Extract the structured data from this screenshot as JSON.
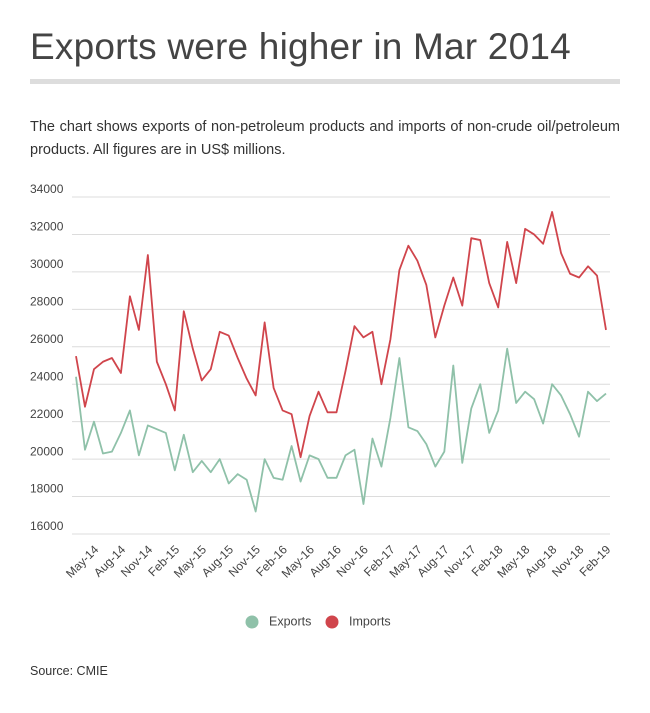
{
  "chart_data": {
    "type": "line",
    "title": "Exports were higher in Mar 2014",
    "subtitle": "The chart shows exports of non-petroleum products and imports of non-crude oil/petroleum products. All figures are in US$ millions.",
    "source": "Source: CMIE",
    "categories": [
      null,
      null,
      "May-14",
      null,
      null,
      "Aug-14",
      null,
      null,
      "Nov-14",
      null,
      null,
      "Feb-15",
      null,
      null,
      "May-15",
      null,
      null,
      "Aug-15",
      null,
      null,
      "Nov-15",
      null,
      null,
      "Feb-16",
      null,
      null,
      "May-16",
      null,
      null,
      "Aug-16",
      null,
      null,
      "Nov-16",
      null,
      null,
      "Feb-17",
      null,
      null,
      "May-17",
      null,
      null,
      "Aug-17",
      null,
      null,
      "Nov-17",
      null,
      null,
      "Feb-18",
      null,
      null,
      "May-18",
      null,
      null,
      "Aug-18",
      null,
      null,
      "Nov-18",
      null,
      null,
      "Feb-19"
    ],
    "series": [
      {
        "name": "Exports",
        "color": "#8fc1a9",
        "values": [
          24400,
          20500,
          22000,
          20300,
          20400,
          21400,
          22600,
          20200,
          21800,
          21600,
          21400,
          19400,
          21300,
          19300,
          19900,
          19300,
          20000,
          18700,
          19200,
          18900,
          17200,
          20000,
          19000,
          18900,
          20700,
          18800,
          20200,
          20000,
          19000,
          19000,
          20200,
          20500,
          17600,
          21100,
          19600,
          22200,
          25400,
          21700,
          21500,
          20800,
          19600,
          20400,
          25000,
          19800,
          22700,
          24000,
          21400,
          22600,
          25900,
          23000,
          23600,
          23200,
          21900,
          24000,
          23400,
          22400,
          21200,
          23600,
          23100,
          23500
        ]
      },
      {
        "name": "Imports",
        "color": "#d0454c",
        "values": [
          25500,
          22800,
          24800,
          25200,
          25400,
          24600,
          28700,
          26900,
          30900,
          25200,
          24000,
          22600,
          27900,
          25900,
          24200,
          24800,
          26800,
          26600,
          25400,
          24300,
          23400,
          27300,
          23800,
          22600,
          22400,
          20100,
          22300,
          23600,
          22500,
          22500,
          24700,
          27100,
          26500,
          26800,
          24000,
          26400,
          30100,
          31400,
          30600,
          29300,
          26500,
          28200,
          29700,
          28200,
          31800,
          31700,
          29400,
          28100,
          31600,
          29400,
          32300,
          32000,
          31500,
          33200,
          31000,
          29900,
          29700,
          30300,
          29800,
          26900
        ]
      }
    ],
    "ylim": [
      16000,
      34000
    ],
    "yticks": [
      16000,
      18000,
      20000,
      22000,
      24000,
      26000,
      28000,
      30000,
      32000,
      34000
    ],
    "grid": true,
    "legend": "bottom"
  }
}
